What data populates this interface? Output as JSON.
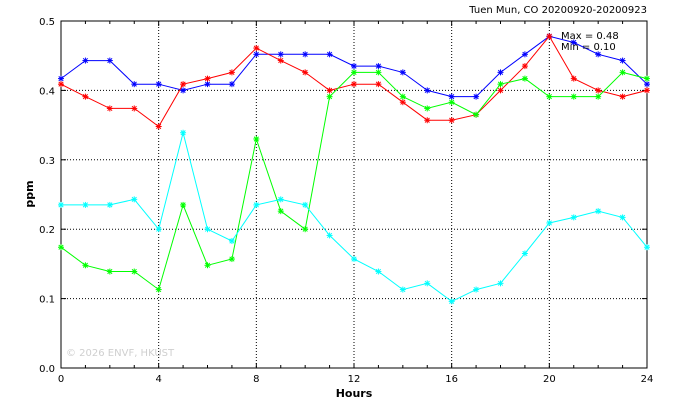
{
  "chart_data": {
    "type": "line",
    "title": "Tuen Mun, CO 20200920-20200923",
    "xlabel": "Hours",
    "ylabel": "ppm",
    "xlim": [
      0,
      24
    ],
    "ylim": [
      0.0,
      0.5
    ],
    "x_ticks": [
      "0",
      "4",
      "8",
      "12",
      "16",
      "20",
      "24"
    ],
    "y_ticks": [
      "0.0",
      "0.1",
      "0.2",
      "0.3",
      "0.4",
      "0.5"
    ],
    "grid": true,
    "stats": {
      "max_label": "Max = 0.48",
      "min_label": "Min = 0.10"
    },
    "watermark": "© 2026 ENVF, HKUST",
    "x": [
      0,
      1,
      2,
      3,
      4,
      5,
      6,
      7,
      8,
      9,
      10,
      11,
      12,
      13,
      14,
      15,
      16,
      17,
      18,
      19,
      20,
      21,
      22,
      23,
      24
    ],
    "series": [
      {
        "color": "#0000ff",
        "values": [
          0.417,
          0.443,
          0.443,
          0.409,
          0.409,
          0.4,
          0.409,
          0.409,
          0.452,
          0.452,
          0.452,
          0.452,
          0.435,
          0.435,
          0.426,
          0.4,
          0.391,
          0.391,
          0.426,
          0.452,
          0.478,
          0.469,
          0.452,
          0.443,
          0.409
        ]
      },
      {
        "color": "#ff0000",
        "values": [
          0.409,
          0.391,
          0.374,
          0.374,
          0.348,
          0.409,
          0.417,
          0.426,
          0.461,
          0.443,
          0.426,
          0.4,
          0.409,
          0.409,
          0.383,
          0.357,
          0.357,
          0.365,
          0.4,
          0.435,
          0.478,
          0.417,
          0.4,
          0.391,
          0.4
        ]
      },
      {
        "color": "#00ff00",
        "values": [
          0.174,
          0.148,
          0.139,
          0.139,
          0.113,
          0.235,
          0.148,
          0.157,
          0.33,
          0.226,
          0.2,
          0.391,
          0.426,
          0.426,
          0.391,
          0.374,
          0.383,
          0.365,
          0.409,
          0.417,
          0.391,
          0.391,
          0.391,
          0.426,
          0.417
        ]
      },
      {
        "color": "#00ffff",
        "values": [
          0.235,
          0.235,
          0.235,
          0.243,
          0.2,
          0.339,
          0.2,
          0.183,
          0.235,
          0.243,
          0.235,
          0.191,
          0.157,
          0.139,
          0.113,
          0.122,
          0.096,
          0.113,
          0.122,
          0.165,
          0.209,
          0.217,
          0.226,
          0.217,
          0.174
        ]
      }
    ]
  }
}
